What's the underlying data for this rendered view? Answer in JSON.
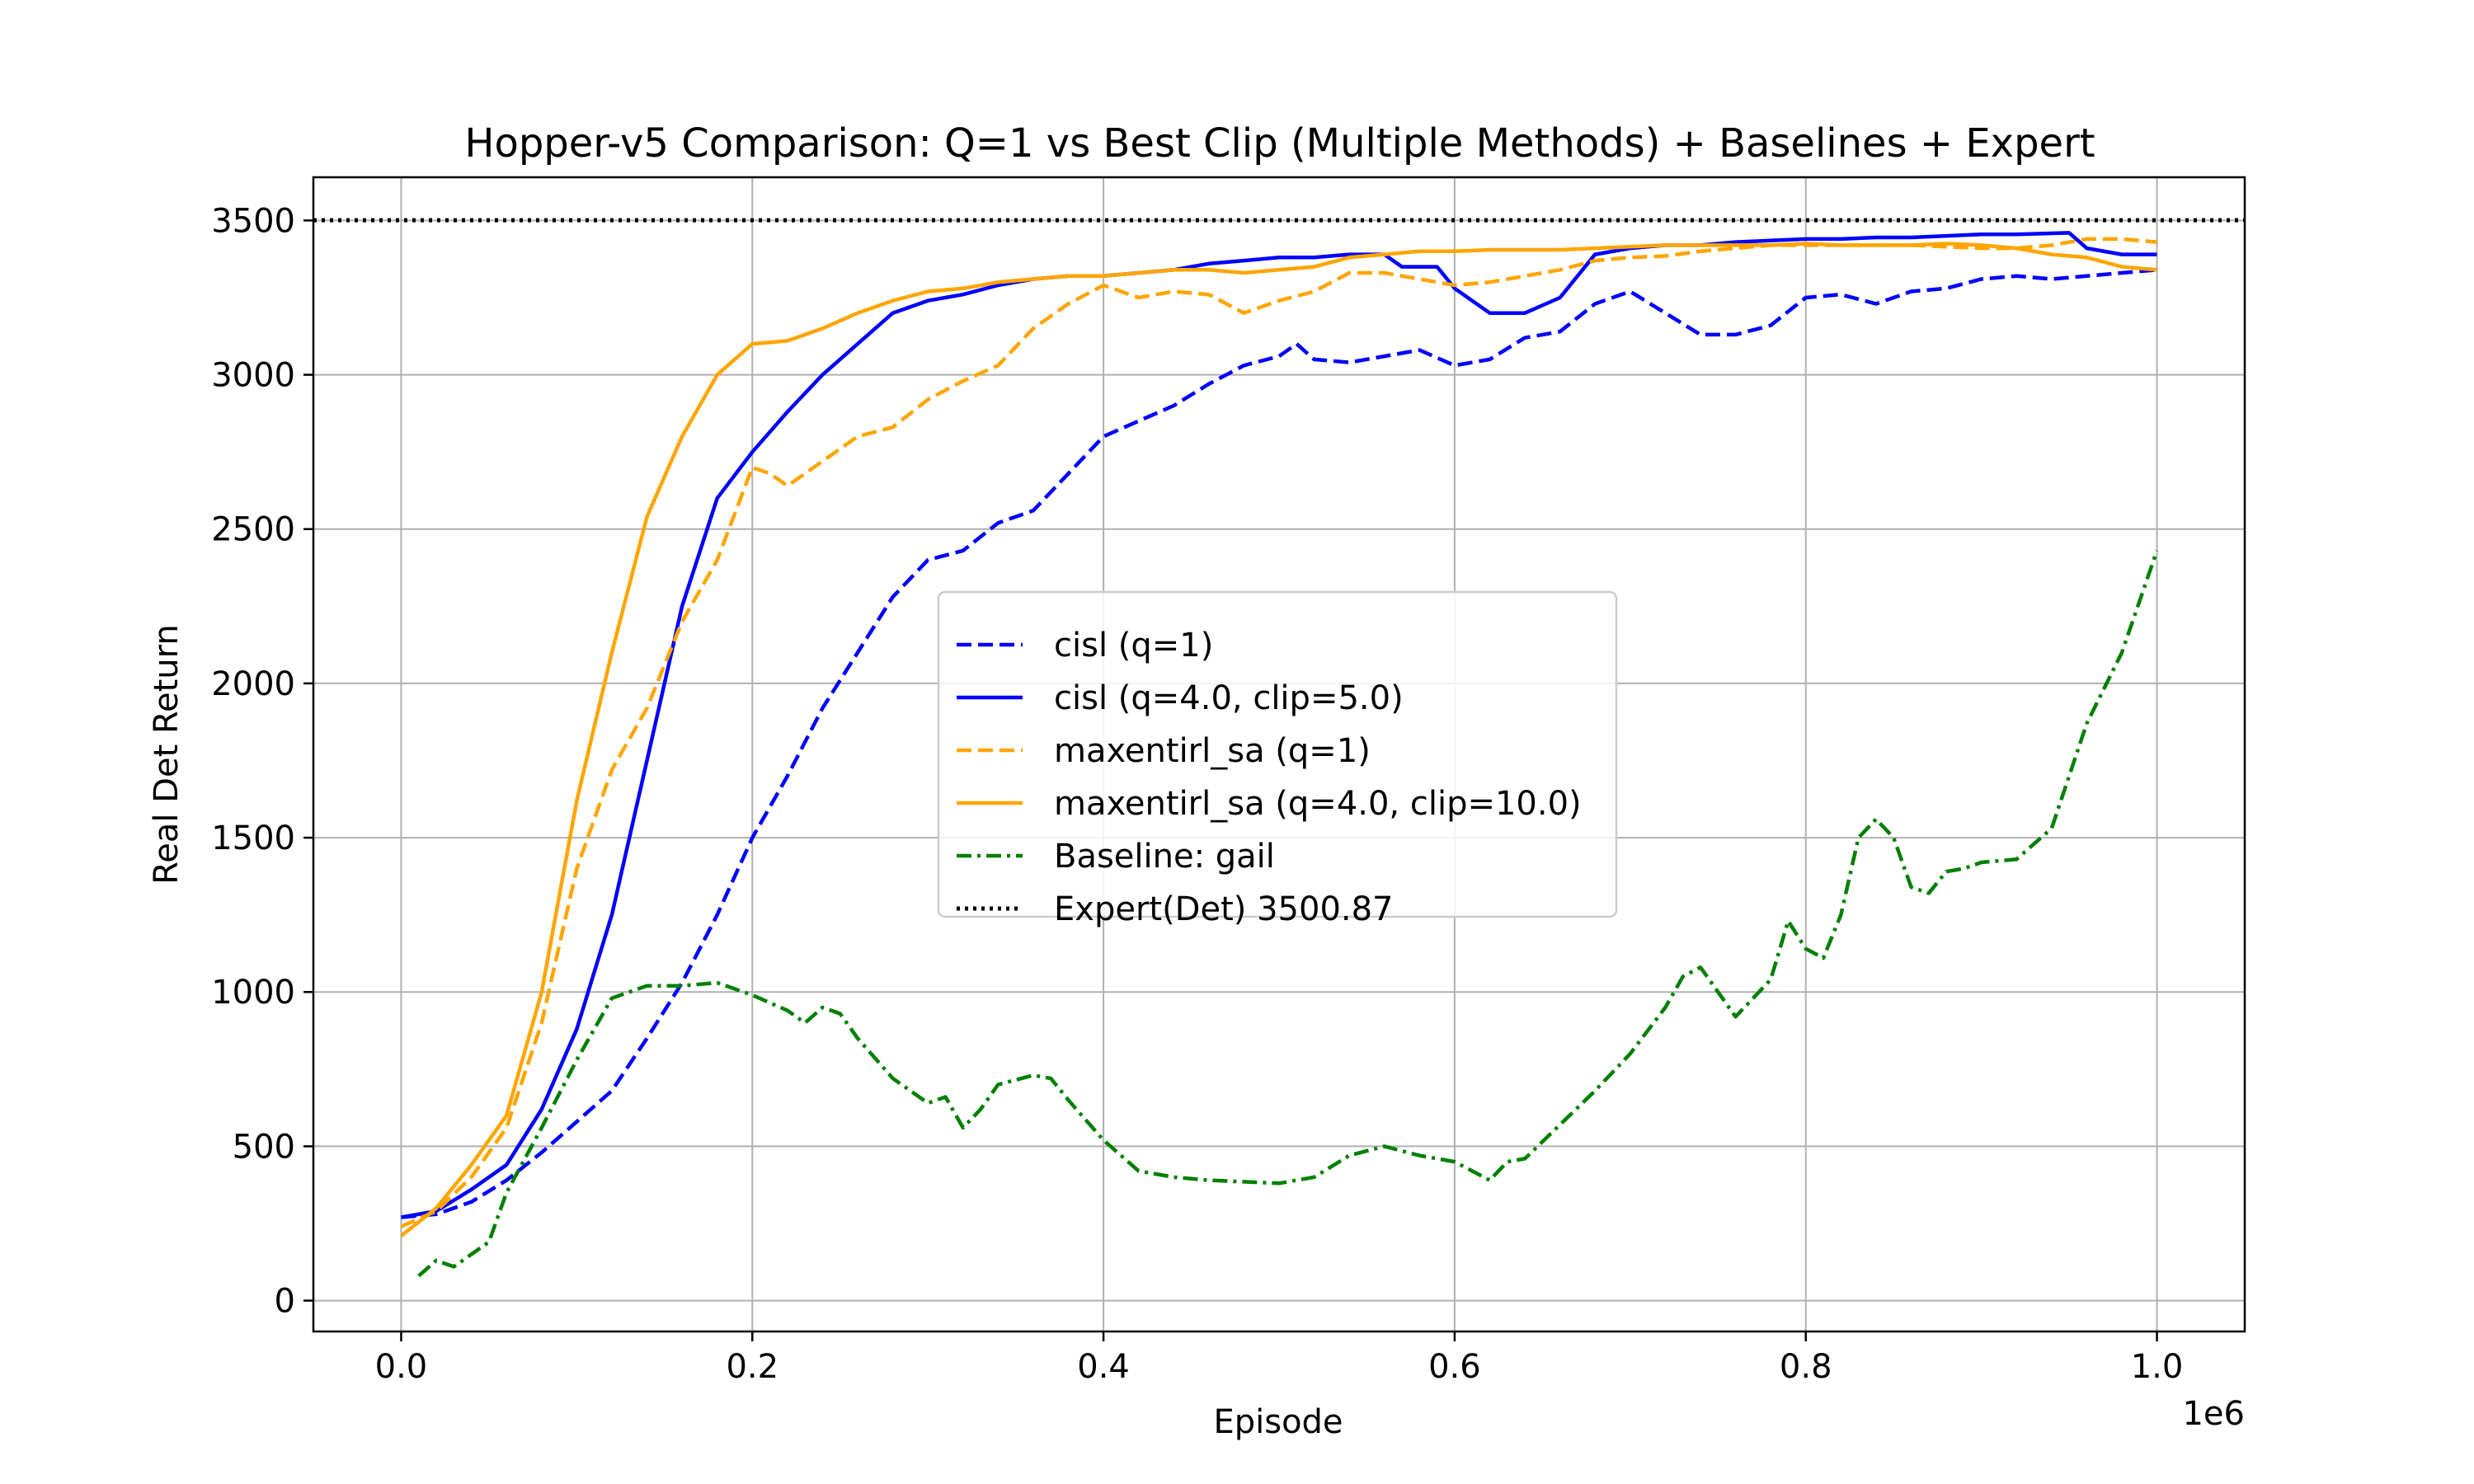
{
  "chart_data": {
    "type": "line",
    "title": "Hopper-v5 Comparison: Q=1 vs Best Clip (Multiple Methods) + Baselines + Expert",
    "xlabel": "Episode",
    "ylabel": "Real Det Return",
    "x_offset_label": "1e6",
    "xlim": [
      -0.05,
      1.05
    ],
    "ylim": [
      -100,
      3640
    ],
    "xticks": [
      0.0,
      0.2,
      0.4,
      0.6,
      0.8,
      1.0
    ],
    "xtick_labels": [
      "0.0",
      "0.2",
      "0.4",
      "0.6",
      "0.8",
      "1.0"
    ],
    "yticks": [
      0,
      500,
      1000,
      1500,
      2000,
      2500,
      3000,
      3500
    ],
    "ytick_labels": [
      "0",
      "500",
      "1000",
      "1500",
      "2000",
      "2500",
      "3000",
      "3500"
    ],
    "grid": true,
    "legend_position": "center",
    "series": [
      {
        "name": "cisl (q=1)",
        "color": "#0000ff",
        "dash": "dashed",
        "points": [
          [
            0,
            270
          ],
          [
            0.02,
            280
          ],
          [
            0.04,
            320
          ],
          [
            0.06,
            390
          ],
          [
            0.08,
            480
          ],
          [
            0.1,
            580
          ],
          [
            0.12,
            680
          ],
          [
            0.14,
            850
          ],
          [
            0.16,
            1030
          ],
          [
            0.18,
            1250
          ],
          [
            0.2,
            1500
          ],
          [
            0.22,
            1700
          ],
          [
            0.24,
            1920
          ],
          [
            0.26,
            2100
          ],
          [
            0.28,
            2280
          ],
          [
            0.3,
            2400
          ],
          [
            0.32,
            2430
          ],
          [
            0.34,
            2520
          ],
          [
            0.36,
            2560
          ],
          [
            0.38,
            2680
          ],
          [
            0.4,
            2800
          ],
          [
            0.42,
            2850
          ],
          [
            0.44,
            2900
          ],
          [
            0.46,
            2970
          ],
          [
            0.48,
            3030
          ],
          [
            0.5,
            3060
          ],
          [
            0.51,
            3100
          ],
          [
            0.52,
            3050
          ],
          [
            0.54,
            3040
          ],
          [
            0.56,
            3060
          ],
          [
            0.58,
            3080
          ],
          [
            0.6,
            3030
          ],
          [
            0.62,
            3050
          ],
          [
            0.64,
            3120
          ],
          [
            0.66,
            3140
          ],
          [
            0.68,
            3230
          ],
          [
            0.7,
            3270
          ],
          [
            0.72,
            3200
          ],
          [
            0.74,
            3130
          ],
          [
            0.76,
            3130
          ],
          [
            0.78,
            3160
          ],
          [
            0.8,
            3250
          ],
          [
            0.82,
            3260
          ],
          [
            0.84,
            3230
          ],
          [
            0.86,
            3270
          ],
          [
            0.88,
            3280
          ],
          [
            0.9,
            3310
          ],
          [
            0.92,
            3320
          ],
          [
            0.94,
            3310
          ],
          [
            0.96,
            3320
          ],
          [
            0.98,
            3330
          ],
          [
            1.0,
            3340
          ]
        ]
      },
      {
        "name": "cisl (q=4.0, clip=5.0)",
        "color": "#0000ff",
        "dash": "solid",
        "points": [
          [
            0,
            270
          ],
          [
            0.02,
            290
          ],
          [
            0.04,
            360
          ],
          [
            0.06,
            440
          ],
          [
            0.08,
            620
          ],
          [
            0.1,
            880
          ],
          [
            0.12,
            1250
          ],
          [
            0.14,
            1750
          ],
          [
            0.16,
            2250
          ],
          [
            0.18,
            2600
          ],
          [
            0.2,
            2750
          ],
          [
            0.22,
            2880
          ],
          [
            0.24,
            3000
          ],
          [
            0.26,
            3100
          ],
          [
            0.28,
            3200
          ],
          [
            0.3,
            3240
          ],
          [
            0.32,
            3260
          ],
          [
            0.34,
            3290
          ],
          [
            0.36,
            3310
          ],
          [
            0.38,
            3320
          ],
          [
            0.4,
            3320
          ],
          [
            0.42,
            3330
          ],
          [
            0.44,
            3340
          ],
          [
            0.46,
            3360
          ],
          [
            0.48,
            3370
          ],
          [
            0.5,
            3380
          ],
          [
            0.52,
            3380
          ],
          [
            0.54,
            3390
          ],
          [
            0.56,
            3390
          ],
          [
            0.57,
            3350
          ],
          [
            0.59,
            3350
          ],
          [
            0.6,
            3280
          ],
          [
            0.62,
            3200
          ],
          [
            0.64,
            3200
          ],
          [
            0.66,
            3250
          ],
          [
            0.68,
            3390
          ],
          [
            0.7,
            3410
          ],
          [
            0.72,
            3420
          ],
          [
            0.74,
            3420
          ],
          [
            0.76,
            3430
          ],
          [
            0.78,
            3435
          ],
          [
            0.8,
            3440
          ],
          [
            0.82,
            3440
          ],
          [
            0.84,
            3445
          ],
          [
            0.86,
            3445
          ],
          [
            0.88,
            3450
          ],
          [
            0.9,
            3455
          ],
          [
            0.92,
            3455
          ],
          [
            0.95,
            3460
          ],
          [
            0.96,
            3410
          ],
          [
            0.98,
            3390
          ],
          [
            1.0,
            3390
          ]
        ]
      },
      {
        "name": "maxentirl_sa (q=1)",
        "color": "#ffa500",
        "dash": "dashed",
        "points": [
          [
            0,
            240
          ],
          [
            0.02,
            290
          ],
          [
            0.04,
            400
          ],
          [
            0.06,
            560
          ],
          [
            0.08,
            900
          ],
          [
            0.1,
            1400
          ],
          [
            0.12,
            1720
          ],
          [
            0.14,
            1920
          ],
          [
            0.16,
            2200
          ],
          [
            0.18,
            2400
          ],
          [
            0.2,
            2700
          ],
          [
            0.21,
            2680
          ],
          [
            0.22,
            2640
          ],
          [
            0.24,
            2720
          ],
          [
            0.26,
            2800
          ],
          [
            0.28,
            2830
          ],
          [
            0.3,
            2920
          ],
          [
            0.32,
            2980
          ],
          [
            0.34,
            3030
          ],
          [
            0.36,
            3150
          ],
          [
            0.38,
            3230
          ],
          [
            0.4,
            3290
          ],
          [
            0.42,
            3250
          ],
          [
            0.44,
            3270
          ],
          [
            0.46,
            3260
          ],
          [
            0.48,
            3200
          ],
          [
            0.5,
            3240
          ],
          [
            0.52,
            3270
          ],
          [
            0.54,
            3330
          ],
          [
            0.56,
            3330
          ],
          [
            0.58,
            3310
          ],
          [
            0.6,
            3290
          ],
          [
            0.62,
            3300
          ],
          [
            0.64,
            3320
          ],
          [
            0.66,
            3340
          ],
          [
            0.68,
            3370
          ],
          [
            0.7,
            3380
          ],
          [
            0.72,
            3385
          ],
          [
            0.74,
            3400
          ],
          [
            0.76,
            3410
          ],
          [
            0.78,
            3420
          ],
          [
            0.8,
            3420
          ],
          [
            0.82,
            3420
          ],
          [
            0.84,
            3420
          ],
          [
            0.86,
            3420
          ],
          [
            0.88,
            3415
          ],
          [
            0.9,
            3410
          ],
          [
            0.92,
            3410
          ],
          [
            0.94,
            3420
          ],
          [
            0.96,
            3440
          ],
          [
            0.98,
            3440
          ],
          [
            1.0,
            3430
          ]
        ]
      },
      {
        "name": "maxentirl_sa (q=4.0, clip=10.0)",
        "color": "#ffa500",
        "dash": "solid",
        "points": [
          [
            0,
            210
          ],
          [
            0.02,
            300
          ],
          [
            0.04,
            440
          ],
          [
            0.06,
            600
          ],
          [
            0.08,
            1000
          ],
          [
            0.1,
            1620
          ],
          [
            0.12,
            2100
          ],
          [
            0.14,
            2540
          ],
          [
            0.16,
            2800
          ],
          [
            0.18,
            3000
          ],
          [
            0.2,
            3100
          ],
          [
            0.22,
            3110
          ],
          [
            0.24,
            3150
          ],
          [
            0.26,
            3200
          ],
          [
            0.28,
            3240
          ],
          [
            0.3,
            3270
          ],
          [
            0.32,
            3280
          ],
          [
            0.34,
            3300
          ],
          [
            0.36,
            3310
          ],
          [
            0.38,
            3320
          ],
          [
            0.4,
            3320
          ],
          [
            0.42,
            3330
          ],
          [
            0.44,
            3340
          ],
          [
            0.46,
            3340
          ],
          [
            0.48,
            3330
          ],
          [
            0.5,
            3340
          ],
          [
            0.52,
            3350
          ],
          [
            0.54,
            3380
          ],
          [
            0.56,
            3390
          ],
          [
            0.58,
            3400
          ],
          [
            0.6,
            3400
          ],
          [
            0.62,
            3405
          ],
          [
            0.64,
            3405
          ],
          [
            0.66,
            3405
          ],
          [
            0.68,
            3410
          ],
          [
            0.7,
            3415
          ],
          [
            0.72,
            3420
          ],
          [
            0.74,
            3420
          ],
          [
            0.76,
            3420
          ],
          [
            0.78,
            3420
          ],
          [
            0.8,
            3425
          ],
          [
            0.82,
            3420
          ],
          [
            0.84,
            3420
          ],
          [
            0.86,
            3420
          ],
          [
            0.88,
            3425
          ],
          [
            0.9,
            3420
          ],
          [
            0.92,
            3410
          ],
          [
            0.94,
            3390
          ],
          [
            0.96,
            3380
          ],
          [
            0.98,
            3350
          ],
          [
            1.0,
            3340
          ]
        ]
      },
      {
        "name": "Baseline: gail",
        "color": "#008000",
        "dash": "dashdot",
        "points": [
          [
            0.01,
            80
          ],
          [
            0.02,
            130
          ],
          [
            0.03,
            110
          ],
          [
            0.04,
            150
          ],
          [
            0.05,
            190
          ],
          [
            0.06,
            350
          ],
          [
            0.08,
            560
          ],
          [
            0.1,
            780
          ],
          [
            0.12,
            980
          ],
          [
            0.14,
            1020
          ],
          [
            0.16,
            1020
          ],
          [
            0.18,
            1030
          ],
          [
            0.2,
            990
          ],
          [
            0.22,
            940
          ],
          [
            0.23,
            900
          ],
          [
            0.24,
            950
          ],
          [
            0.25,
            930
          ],
          [
            0.26,
            850
          ],
          [
            0.28,
            720
          ],
          [
            0.3,
            640
          ],
          [
            0.31,
            660
          ],
          [
            0.32,
            560
          ],
          [
            0.33,
            620
          ],
          [
            0.34,
            700
          ],
          [
            0.36,
            730
          ],
          [
            0.37,
            720
          ],
          [
            0.38,
            650
          ],
          [
            0.4,
            520
          ],
          [
            0.42,
            420
          ],
          [
            0.44,
            400
          ],
          [
            0.46,
            390
          ],
          [
            0.48,
            385
          ],
          [
            0.5,
            380
          ],
          [
            0.52,
            400
          ],
          [
            0.54,
            470
          ],
          [
            0.56,
            500
          ],
          [
            0.58,
            470
          ],
          [
            0.6,
            450
          ],
          [
            0.62,
            390
          ],
          [
            0.63,
            450
          ],
          [
            0.64,
            460
          ],
          [
            0.66,
            570
          ],
          [
            0.68,
            680
          ],
          [
            0.7,
            800
          ],
          [
            0.72,
            950
          ],
          [
            0.73,
            1050
          ],
          [
            0.74,
            1080
          ],
          [
            0.75,
            1000
          ],
          [
            0.76,
            920
          ],
          [
            0.77,
            980
          ],
          [
            0.78,
            1040
          ],
          [
            0.79,
            1230
          ],
          [
            0.8,
            1140
          ],
          [
            0.81,
            1110
          ],
          [
            0.82,
            1250
          ],
          [
            0.83,
            1500
          ],
          [
            0.84,
            1560
          ],
          [
            0.85,
            1500
          ],
          [
            0.86,
            1340
          ],
          [
            0.87,
            1320
          ],
          [
            0.88,
            1390
          ],
          [
            0.89,
            1400
          ],
          [
            0.9,
            1420
          ],
          [
            0.92,
            1430
          ],
          [
            0.94,
            1530
          ],
          [
            0.96,
            1870
          ],
          [
            0.98,
            2100
          ],
          [
            1.0,
            2430
          ]
        ]
      },
      {
        "name": "Expert(Det) 3500.87",
        "color": "#000000",
        "dash": "dotted",
        "horizontal": true,
        "y": 3500.87
      }
    ]
  }
}
